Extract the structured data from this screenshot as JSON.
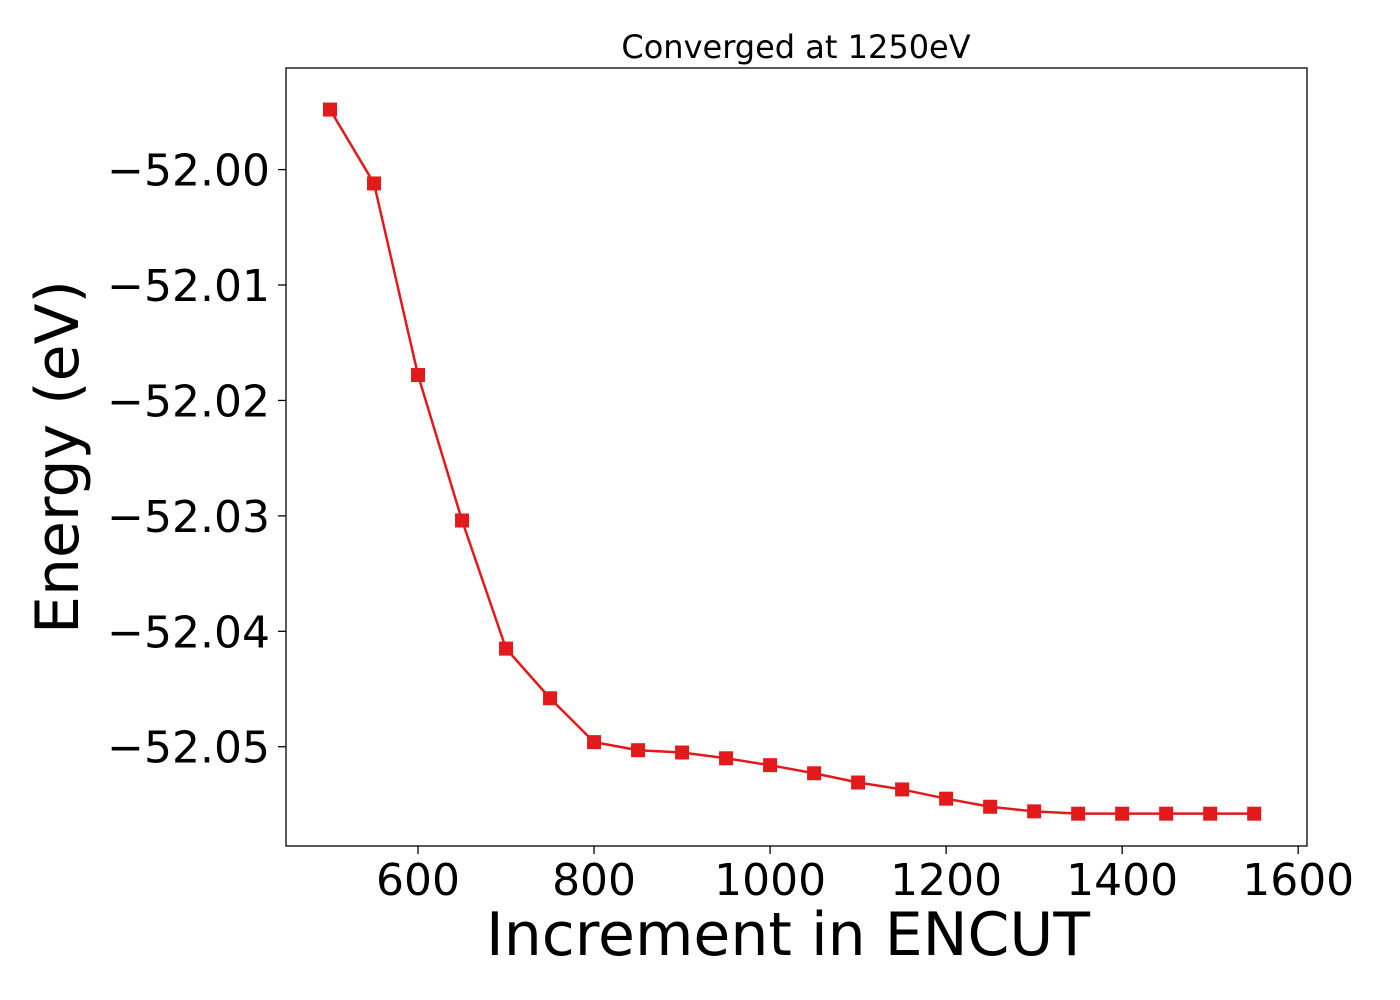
{
  "chart_data": {
    "type": "line",
    "title": "Converged at 1250eV",
    "xlabel": "Increment in ENCUT",
    "ylabel": "Energy (eV)",
    "xlim": [
      450,
      1610
    ],
    "ylim": [
      -52.0586,
      -51.9912
    ],
    "xticks": [
      600,
      800,
      1000,
      1200,
      1400,
      1600
    ],
    "yticks": [
      -52.0,
      -52.01,
      -52.02,
      -52.03,
      -52.04,
      -52.05
    ],
    "ytick_labels": [
      "−52.00",
      "−52.01",
      "−52.02",
      "−52.03",
      "−52.04",
      "−52.05"
    ],
    "grid": false,
    "series": [
      {
        "color": "#e31a1c",
        "marker": "square",
        "x": [
          500,
          550,
          600,
          650,
          700,
          750,
          800,
          850,
          900,
          950,
          1000,
          1050,
          1100,
          1150,
          1200,
          1250,
          1300,
          1350,
          1400,
          1450,
          1500,
          1550
        ],
        "y": [
          -51.9948,
          -52.0012,
          -52.0178,
          -52.0304,
          -52.0415,
          -52.0458,
          -52.0496,
          -52.0503,
          -52.0505,
          -52.051,
          -52.0516,
          -52.0523,
          -52.0531,
          -52.0537,
          -52.0545,
          -52.0552,
          -52.0556,
          -52.0558,
          -52.0558,
          -52.0558,
          -52.0558,
          -52.0558
        ]
      }
    ]
  }
}
